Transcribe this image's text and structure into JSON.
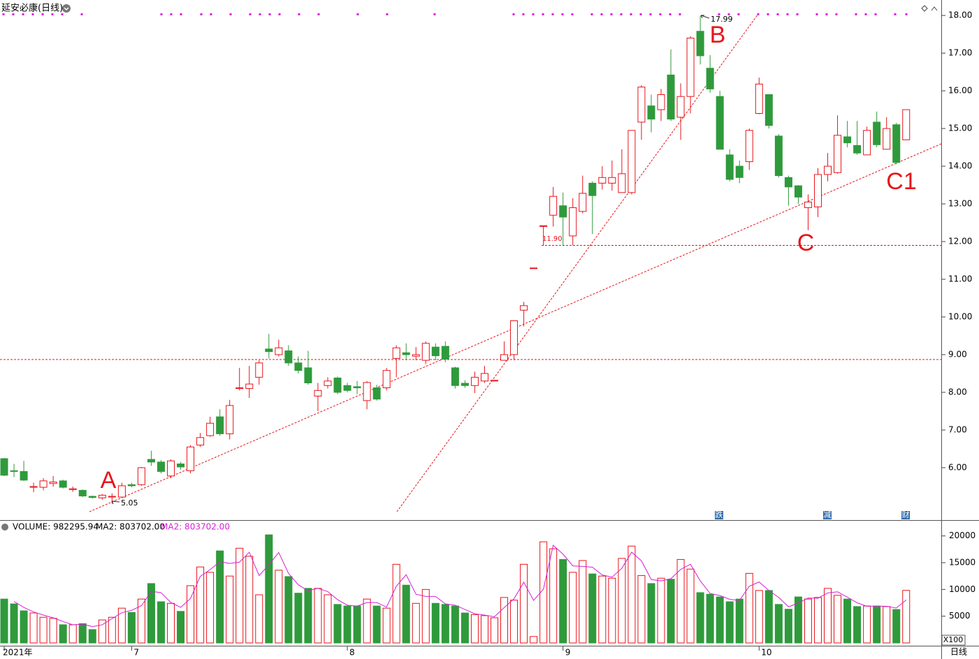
{
  "chart_data": [
    {
      "type": "candlestick",
      "title": "延安必康(日线)",
      "categories": [
        "2021年",
        null,
        null,
        null,
        null,
        null,
        null,
        null,
        null,
        null,
        null,
        null,
        null,
        "7",
        null,
        null,
        null,
        null,
        null,
        null,
        null,
        null,
        null,
        null,
        null,
        null,
        null,
        null,
        null,
        null,
        null,
        null,
        null,
        null,
        null,
        "8",
        null,
        null,
        null,
        null,
        null,
        null,
        null,
        null,
        null,
        null,
        null,
        null,
        null,
        null,
        null,
        null,
        null,
        null,
        null,
        null,
        null,
        "9",
        null,
        null,
        null,
        null,
        null,
        null,
        null,
        null,
        null,
        null,
        null,
        null,
        null,
        null,
        null,
        null,
        null,
        null,
        null,
        "10",
        null,
        null,
        null,
        null,
        null,
        null,
        null,
        null,
        null,
        null,
        null,
        null,
        null,
        null,
        null
      ],
      "open": [
        6.24,
        5.92,
        5.9,
        5.48,
        5.48,
        5.58,
        5.65,
        5.42,
        5.4,
        5.24,
        5.2,
        5.22,
        5.22,
        5.55,
        5.55,
        6.22,
        6.15,
        5.78,
        6.1,
        5.92,
        6.6,
        6.85,
        7.35,
        6.9,
        8.1,
        8.1,
        8.4,
        9.15,
        9.0,
        9.1,
        8.78,
        8.65,
        7.9,
        8.18,
        8.38,
        8.18,
        8.15,
        7.78,
        8.12,
        8.12,
        8.9,
        9.05,
        8.96,
        8.85,
        9.2,
        9.22,
        8.65,
        8.24,
        8.18,
        8.3,
        8.3,
        8.85,
        9.0,
        10.18,
        11.3,
        12.42,
        12.7,
        12.95,
        12.15,
        12.8,
        13.55,
        13.55,
        13.55,
        13.3,
        13.3,
        15.17,
        15.6,
        15.5,
        16.42,
        15.3,
        15.85,
        17.58,
        16.6,
        15.85,
        14.3,
        14.0,
        14.12,
        15.4,
        15.9,
        14.8,
        13.7,
        13.48,
        12.9,
        12.92,
        13.78,
        13.83,
        14.78,
        14.55,
        14.3,
        15.17,
        14.45,
        15.1,
        14.7
      ],
      "high": [
        6.26,
        6.1,
        6.18,
        5.6,
        5.72,
        5.78,
        5.68,
        5.5,
        5.42,
        5.26,
        5.3,
        5.32,
        5.6,
        5.6,
        6.02,
        6.45,
        6.2,
        6.22,
        6.15,
        6.6,
        6.92,
        7.35,
        7.55,
        7.8,
        8.65,
        8.7,
        8.85,
        9.55,
        9.4,
        9.25,
        8.95,
        9.1,
        8.25,
        8.4,
        8.42,
        8.25,
        8.3,
        8.3,
        8.2,
        8.65,
        9.25,
        9.3,
        9.2,
        9.35,
        9.3,
        9.35,
        8.68,
        8.32,
        8.55,
        8.7,
        8.32,
        9.35,
        9.9,
        10.4,
        11.3,
        12.42,
        13.45,
        13.3,
        13.15,
        13.75,
        13.6,
        14.0,
        14.15,
        14.45,
        14.95,
        16.15,
        15.9,
        16.05,
        17.1,
        16.2,
        17.45,
        17.99,
        16.95,
        16.0,
        14.45,
        14.15,
        15.0,
        16.35,
        15.9,
        14.85,
        13.75,
        13.5,
        13.25,
        13.95,
        14.35,
        15.35,
        15.2,
        15.2,
        15.05,
        15.45,
        15.3,
        15.15,
        15.5
      ],
      "low": [
        5.78,
        5.75,
        5.65,
        5.35,
        5.4,
        5.5,
        5.45,
        5.36,
        5.22,
        5.18,
        5.15,
        5.05,
        5.2,
        5.48,
        5.52,
        6.05,
        5.85,
        5.72,
        5.95,
        5.85,
        6.55,
        6.82,
        6.85,
        6.75,
        8.05,
        7.85,
        8.2,
        8.9,
        8.95,
        8.7,
        8.5,
        8.2,
        7.5,
        8.1,
        7.95,
        8.0,
        7.95,
        7.55,
        7.78,
        8.05,
        8.4,
        8.85,
        8.85,
        8.75,
        8.85,
        8.8,
        8.1,
        8.12,
        7.98,
        8.25,
        8.3,
        8.85,
        8.85,
        9.75,
        11.3,
        11.9,
        12.4,
        11.9,
        11.9,
        12.75,
        12.2,
        13.38,
        13.35,
        13.3,
        13.25,
        14.7,
        14.9,
        15.2,
        15.2,
        14.7,
        15.4,
        16.7,
        15.95,
        14.45,
        13.6,
        13.55,
        13.9,
        15.38,
        15.0,
        13.7,
        12.95,
        13.0,
        12.3,
        12.65,
        13.6,
        13.8,
        14.5,
        14.3,
        14.3,
        14.5,
        14.45,
        14.05,
        14.7
      ],
      "close": [
        5.8,
        5.9,
        5.67,
        5.5,
        5.65,
        5.62,
        5.48,
        5.44,
        5.25,
        5.21,
        5.27,
        5.24,
        5.52,
        5.52,
        6.0,
        6.15,
        5.9,
        6.18,
        6.02,
        6.55,
        6.8,
        7.18,
        6.9,
        7.65,
        8.12,
        8.22,
        8.78,
        9.08,
        9.18,
        8.78,
        8.58,
        8.25,
        8.05,
        8.3,
        8.0,
        8.05,
        8.12,
        8.26,
        7.82,
        8.58,
        9.18,
        9.0,
        9.0,
        9.3,
        8.97,
        8.88,
        8.18,
        8.18,
        8.4,
        8.5,
        8.32,
        9.0,
        9.9,
        10.3,
        11.3,
        12.42,
        13.2,
        12.65,
        12.9,
        13.28,
        13.22,
        13.7,
        13.7,
        13.8,
        14.95,
        16.1,
        15.25,
        15.9,
        15.25,
        15.85,
        17.4,
        16.93,
        16.05,
        14.45,
        13.65,
        13.7,
        14.95,
        16.18,
        15.08,
        13.75,
        13.45,
        13.18,
        13.05,
        13.78,
        14.0,
        14.82,
        14.62,
        14.35,
        14.95,
        14.57,
        15.0,
        14.1,
        15.5
      ],
      "up_color": "#e8141b",
      "down_color": "#2f9a3c",
      "ylim": [
        4.61,
        18.41
      ],
      "yticks": [
        {
          "value": 6,
          "label": "6.00"
        },
        {
          "value": 7,
          "label": "7.00"
        },
        {
          "value": 8,
          "label": "8.00"
        },
        {
          "value": 9,
          "label": "9.00"
        },
        {
          "value": 10,
          "label": "10.00"
        },
        {
          "value": 11,
          "label": "11.00"
        },
        {
          "value": 12,
          "label": "12.00"
        },
        {
          "value": 13,
          "label": "13.00"
        },
        {
          "value": 14,
          "label": "14.00"
        },
        {
          "value": 15,
          "label": "15.00"
        },
        {
          "value": 16,
          "label": "16.00"
        },
        {
          "value": 17,
          "label": "17.00"
        },
        {
          "value": 18,
          "label": "18.00"
        }
      ],
      "levels": [
        8.87,
        11.9
      ],
      "price_labels": [
        17.99,
        5.05,
        {
          "value": 11.9,
          "label": "11.90"
        }
      ],
      "annotations": [
        "A",
        "B",
        "C",
        "C1"
      ],
      "event_markers": [
        "跌",
        "减",
        "财"
      ],
      "period": "日线"
    },
    {
      "type": "bar",
      "series": [
        {
          "name": "VOLUME: 982295.94",
          "values": [
            8200,
            7300,
            6000,
            5600,
            4800,
            4600,
            3400,
            3400,
            3600,
            2500,
            4300,
            4800,
            6500,
            5700,
            8200,
            11100,
            7700,
            7400,
            5900,
            10700,
            14200,
            13200,
            17200,
            12500,
            17700,
            16200,
            9000,
            20200,
            13600,
            12400,
            9300,
            10200,
            10200,
            9000,
            7200,
            6900,
            6900,
            8200,
            6900,
            6500,
            14700,
            10800,
            7400,
            10000,
            7400,
            7200,
            6900,
            5600,
            5300,
            5100,
            4700,
            8500,
            8000,
            14700,
            1200,
            18900,
            17600,
            15600,
            13200,
            15400,
            12900,
            12500,
            12100,
            15800,
            18100,
            12600,
            11100,
            12100,
            11900,
            15600,
            13800,
            9400,
            9100,
            8600,
            7700,
            8200,
            13000,
            9800,
            9800,
            7200,
            6300,
            8600,
            8200,
            8500,
            10200,
            8900,
            8200,
            6800,
            6900,
            6900,
            6800,
            6251.08,
            9822.96
          ]
        },
        {
          "name": "MA2: 803702.00",
          "color": "#d81fd8",
          "values": [
            null,
            7750,
            6650,
            5800,
            5200,
            4700,
            4000,
            3400,
            3500,
            3050,
            3400,
            4550,
            5650,
            6100,
            6950,
            9650,
            9400,
            7550,
            6650,
            8300,
            12450,
            13700,
            15200,
            14850,
            15100,
            16950,
            12600,
            14600,
            16900,
            13000,
            10850,
            9750,
            10200,
            9600,
            8100,
            7050,
            6900,
            7550,
            7550,
            6700,
            10600,
            12750,
            9100,
            8700,
            8700,
            7300,
            7050,
            6250,
            5450,
            5200,
            4900,
            6600,
            8250,
            11350,
            7950,
            10050,
            18250,
            16600,
            14400,
            14300,
            14150,
            12700,
            12300,
            13950,
            16950,
            15350,
            11850,
            11600,
            12000,
            13750,
            14700,
            11600,
            9250,
            8850,
            8150,
            7950,
            10600,
            11400,
            9800,
            8500,
            6750,
            7450,
            8400,
            8350,
            9350,
            9550,
            8550,
            7500,
            6850,
            6900,
            6850,
            6525.54,
            8037.02
          ]
        }
      ],
      "legend_extra": "MA2: 803702.00",
      "ylim": [
        0,
        22700
      ],
      "yticks": [
        5000,
        10000,
        15000,
        20000
      ],
      "unit_label": "X100"
    }
  ]
}
